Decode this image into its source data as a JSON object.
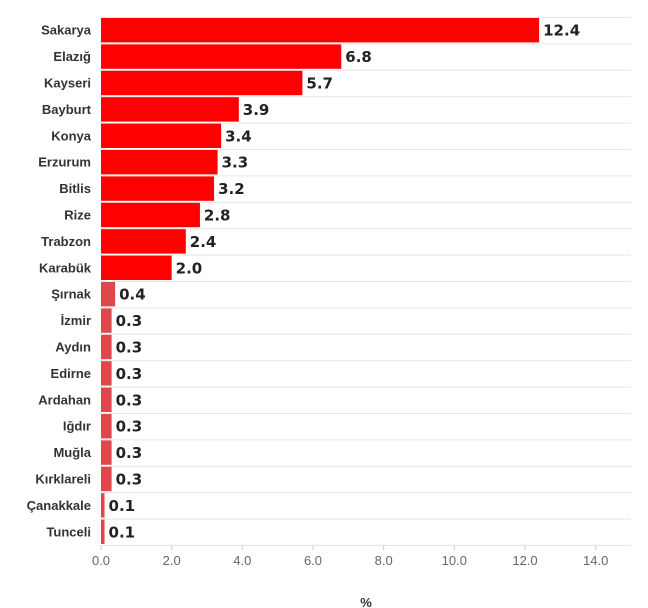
{
  "chart_data": {
    "type": "bar",
    "orientation": "horizontal",
    "title": "",
    "xlabel": "%",
    "ylabel": "",
    "xlim": [
      0,
      15
    ],
    "x_ticks": [
      "0.0",
      "2.0",
      "4.0",
      "6.0",
      "8.0",
      "10.0",
      "12.0",
      "14.0"
    ],
    "grid": true,
    "categories": [
      "Sakarya",
      "Elazığ",
      "Kayseri",
      "Bayburt",
      "Konya",
      "Erzurum",
      "Bitlis",
      "Rize",
      "Trabzon",
      "Karabük",
      "Şırnak",
      "İzmir",
      "Aydın",
      "Edirne",
      "Ardahan",
      "Iğdır",
      "Muğla",
      "Kırklareli",
      "Çanakkale",
      "Tunceli"
    ],
    "values": [
      12.4,
      6.8,
      5.7,
      3.9,
      3.4,
      3.3,
      3.2,
      2.8,
      2.4,
      2.0,
      0.4,
      0.3,
      0.3,
      0.3,
      0.3,
      0.3,
      0.3,
      0.3,
      0.1,
      0.1
    ],
    "value_labels": [
      "12.4",
      "6.8",
      "5.7",
      "3.9",
      "3.4",
      "3.3",
      "3.2",
      "2.8",
      "2.4",
      "2.0",
      "0.4",
      "0.3",
      "0.3",
      "0.3",
      "0.3",
      "0.3",
      "0.3",
      "0.3",
      "0.1",
      "0.1"
    ],
    "colors": {
      "high": "#ff0000",
      "low": "#e0474c",
      "gridline": "#e6e6e6",
      "label": "#333333"
    },
    "high_threshold": 1.0
  }
}
